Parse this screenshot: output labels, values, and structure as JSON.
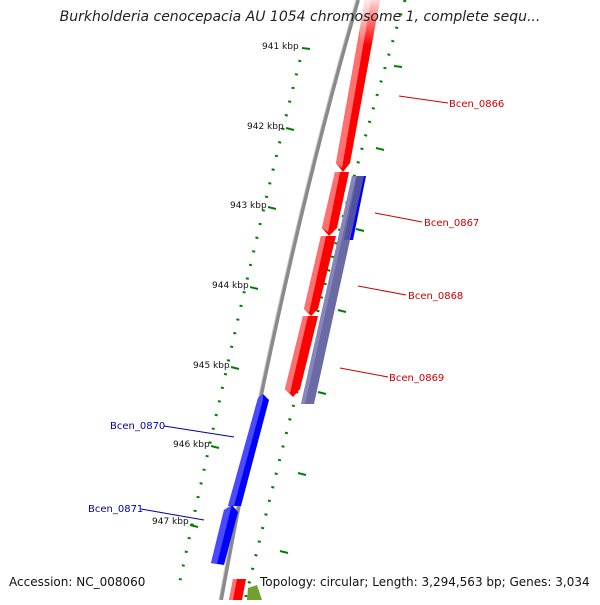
{
  "title": "Burkholderia cenocepacia AU 1054 chromosome 1, complete sequ...",
  "footer": {
    "accession": "Accession: NC_008060",
    "topology": "Topology: circular; Length: 3,294,563 bp; Genes: 3,034"
  },
  "ruler": {
    "unit": "kbp",
    "ticks": [
      "941 kbp",
      "942 kbp",
      "943 kbp",
      "944 kbp",
      "945 kbp",
      "946 kbp",
      "947 kbp"
    ]
  },
  "colors": {
    "forward_gene": "#ff0000",
    "reverse_gene": "#0000ff",
    "overlap_feature": "#5a5a9a",
    "backbone": "#8a8a8a",
    "ticks": "#008000",
    "forward_label": "#cc0000",
    "reverse_label": "#0000aa"
  },
  "genes": [
    {
      "name": "Bcen_0866",
      "strand": "forward"
    },
    {
      "name": "Bcen_0867",
      "strand": "forward"
    },
    {
      "name": "Bcen_0868",
      "strand": "forward"
    },
    {
      "name": "Bcen_0869",
      "strand": "forward"
    },
    {
      "name": "Bcen_0870",
      "strand": "reverse"
    },
    {
      "name": "Bcen_0871",
      "strand": "reverse"
    }
  ]
}
